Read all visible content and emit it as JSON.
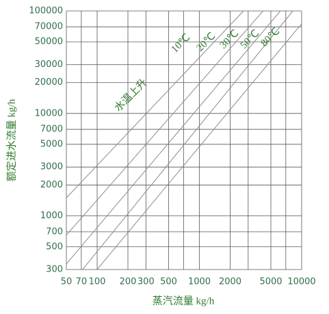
{
  "chart_data": {
    "type": "line",
    "x_label": "蒸汽流量 kg/h",
    "y_label": "额定进水流量 kg/h",
    "annotation": "水温上升",
    "log_x": true,
    "log_y": true,
    "grid": true,
    "xlim": [
      50,
      10000
    ],
    "ylim": [
      300,
      100000
    ],
    "xticks": [
      50,
      70,
      100,
      200,
      300,
      500,
      1000,
      2000,
      5000,
      10000
    ],
    "xminor": [
      700,
      3000,
      7000
    ],
    "yticks": [
      100000,
      70000,
      50000,
      30000,
      20000,
      10000,
      7000,
      5000,
      3000,
      2000,
      1000,
      700,
      500,
      300
    ],
    "series": [
      {
        "name": "10℃",
        "color": "#8a8a8a",
        "x": [
          50,
          2700
        ],
        "values": [
          1500,
          100000
        ]
      },
      {
        "name": "20℃",
        "color": "#8a8a8a",
        "x": [
          50,
          4200
        ],
        "values": [
          650,
          100000
        ]
      },
      {
        "name": "30℃",
        "color": "#8a8a8a",
        "x": [
          50,
          6200
        ],
        "values": [
          340,
          100000
        ]
      },
      {
        "name": "50℃",
        "color": "#8a8a8a",
        "x": [
          72,
          8200
        ],
        "values": [
          300,
          100000
        ]
      },
      {
        "name": "80℃",
        "color": "#8a8a8a",
        "x": [
          100,
          10000
        ],
        "values": [
          300,
          75000
        ]
      }
    ]
  }
}
